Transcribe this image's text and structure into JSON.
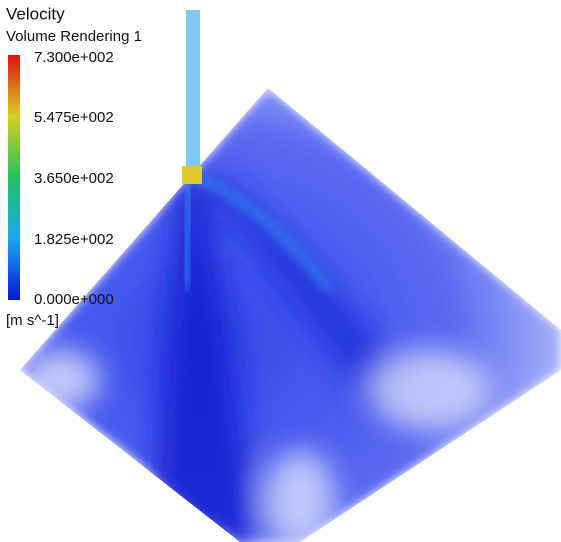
{
  "legend": {
    "title": "Velocity",
    "subtitle": "Volume Rendering 1",
    "ticks": [
      "7.300e+002",
      "5.475e+002",
      "3.650e+002",
      "1.825e+002",
      "0.000e+000"
    ],
    "unit": "[m s^-1]"
  }
}
